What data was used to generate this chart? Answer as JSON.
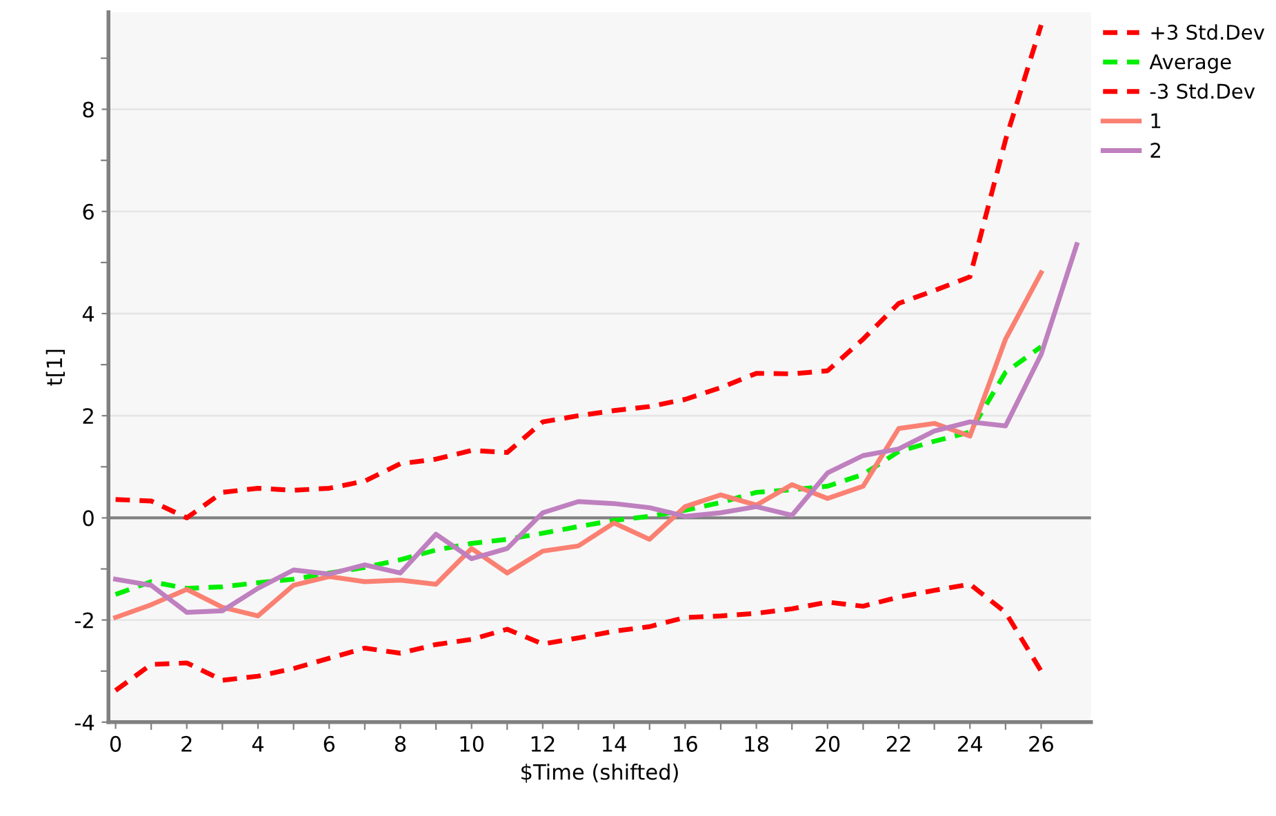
{
  "chart_data": {
    "type": "line",
    "xlabel": "$Time (shifted)",
    "ylabel": "t[1]",
    "x": [
      0,
      1,
      2,
      3,
      4,
      5,
      6,
      7,
      8,
      9,
      10,
      11,
      12,
      13,
      14,
      15,
      16,
      17,
      18,
      19,
      20,
      21,
      22,
      23,
      24,
      25,
      26
    ],
    "series": [
      {
        "name": "+3 Std.Dev",
        "color": "#ff0000",
        "line_style": "dashed",
        "values": [
          0.36,
          0.33,
          0.0,
          0.5,
          0.58,
          0.54,
          0.58,
          0.72,
          1.06,
          1.15,
          1.32,
          1.28,
          1.88,
          2.0,
          2.1,
          2.18,
          2.32,
          2.55,
          2.83,
          2.82,
          2.88,
          3.5,
          4.2,
          4.45,
          4.72,
          7.4,
          9.65
        ]
      },
      {
        "name": "Average",
        "color": "#00ee00",
        "line_style": "dashed",
        "values": [
          -1.5,
          -1.25,
          -1.38,
          -1.35,
          -1.27,
          -1.2,
          -1.08,
          -0.97,
          -0.82,
          -0.63,
          -0.5,
          -0.42,
          -0.3,
          -0.17,
          -0.05,
          0.03,
          0.15,
          0.3,
          0.5,
          0.55,
          0.62,
          0.85,
          1.3,
          1.5,
          1.68,
          2.85,
          3.35
        ]
      },
      {
        "name": "-3 Std.Dev",
        "color": "#ff0000",
        "line_style": "dashed",
        "values": [
          -3.38,
          -2.87,
          -2.84,
          -3.18,
          -3.1,
          -2.95,
          -2.75,
          -2.55,
          -2.65,
          -2.48,
          -2.38,
          -2.18,
          -2.47,
          -2.35,
          -2.22,
          -2.13,
          -1.95,
          -1.92,
          -1.87,
          -1.78,
          -1.65,
          -1.73,
          -1.55,
          -1.42,
          -1.3,
          -1.85,
          -3.0
        ]
      },
      {
        "name": "1",
        "color": "#fa8072",
        "line_style": "solid",
        "values": [
          -1.95,
          -1.7,
          -1.4,
          -1.75,
          -1.92,
          -1.32,
          -1.15,
          -1.25,
          -1.22,
          -1.3,
          -0.6,
          -1.08,
          -0.65,
          -0.55,
          -0.1,
          -0.42,
          0.22,
          0.45,
          0.25,
          0.65,
          0.38,
          0.62,
          1.75,
          1.85,
          1.6,
          3.5,
          4.8
        ]
      },
      {
        "name": "2",
        "color": "#bf80bf",
        "line_style": "solid",
        "x": [
          0,
          1,
          2,
          3,
          4,
          5,
          6,
          7,
          8,
          9,
          10,
          11,
          12,
          13,
          14,
          15,
          16,
          17,
          18,
          19,
          20,
          21,
          22,
          23,
          24,
          25,
          26,
          27
        ],
        "values": [
          -1.2,
          -1.32,
          -1.85,
          -1.82,
          -1.38,
          -1.02,
          -1.1,
          -0.92,
          -1.08,
          -0.32,
          -0.8,
          -0.6,
          0.1,
          0.32,
          0.28,
          0.2,
          0.03,
          0.1,
          0.22,
          0.05,
          0.88,
          1.22,
          1.35,
          1.7,
          1.88,
          1.8,
          3.2,
          5.35
        ]
      }
    ],
    "xlim": [
      -0.2,
      27.4
    ],
    "xticks": [
      0,
      {
        "value": 1,
        "label": null
      },
      2,
      {
        "value": 3,
        "label": null
      },
      4,
      {
        "value": 5,
        "label": null
      },
      6,
      {
        "value": 7,
        "label": null
      },
      8,
      {
        "value": 9,
        "label": null
      },
      10,
      {
        "value": 11,
        "label": null
      },
      12,
      {
        "value": 13,
        "label": null
      },
      14,
      {
        "value": 15,
        "label": null
      },
      16,
      {
        "value": 17,
        "label": null
      },
      18,
      {
        "value": 19,
        "label": null
      },
      20,
      {
        "value": 21,
        "label": null
      },
      22,
      {
        "value": 23,
        "label": null
      },
      24,
      {
        "value": 25,
        "label": null
      },
      26
    ],
    "ylim": [
      -4,
      9.9
    ],
    "yticks": [
      -4,
      {
        "value": -3,
        "label": null
      },
      -2,
      {
        "value": -1,
        "label": null
      },
      0,
      {
        "value": 1,
        "label": null
      },
      2,
      {
        "value": 3,
        "label": null
      },
      4,
      {
        "value": 5,
        "label": null
      },
      6,
      {
        "value": 7,
        "label": null
      },
      8,
      {
        "value": 9,
        "label": null
      }
    ],
    "ref_lines": [
      {
        "axis": "y",
        "value": 0,
        "label": null,
        "color": "#808080"
      }
    ],
    "grid": "y",
    "legend": "top right",
    "marker": "none"
  }
}
